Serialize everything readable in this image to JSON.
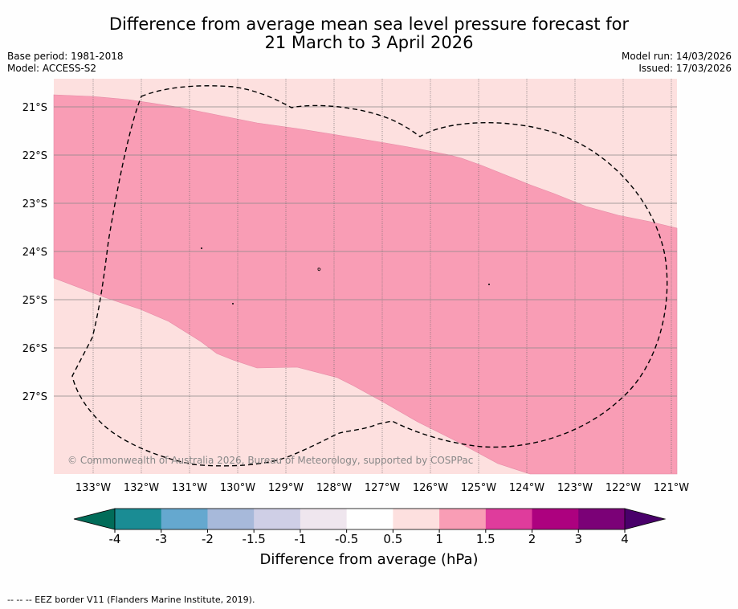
{
  "title_line1": "Difference from average mean sea level pressure forecast for",
  "title_line2": "21 March to 3 April 2026",
  "base_period": "Base period: 1981-2018",
  "model": "Model: ACCESS-S2",
  "model_run": "Model run: 14/03/2026",
  "issued": "Issued: 17/03/2026",
  "copyright": "© Commonwealth of Australia 2026, Bureau of Meteorology, supported by COSPPac",
  "lat_labels": [
    "21°S",
    "22°S",
    "23°S",
    "24°S",
    "25°S",
    "26°S",
    "27°S"
  ],
  "lon_labels": [
    "133°W",
    "132°W",
    "131°W",
    "130°W",
    "129°W",
    "128°W",
    "127°W",
    "126°W",
    "125°W",
    "124°W",
    "123°W",
    "122°W",
    "121°W"
  ],
  "colorbar": {
    "title": "Difference from average (hPa)",
    "ticks": [
      "-4",
      "-3",
      "-2",
      "-1.5",
      "-1",
      "-0.5",
      "0.5",
      "1",
      "1.5",
      "2",
      "3",
      "4"
    ],
    "colors": [
      "#1a8c94",
      "#65a8cf",
      "#a7b9da",
      "#cfcfe6",
      "#efe6ee",
      "#ffffff",
      "#fde0df",
      "#f99db5",
      "#df3c9c",
      "#ad017f",
      "#7b0177"
    ],
    "under_color": "#016c59",
    "over_color": "#49006a"
  },
  "legend_note": "--  --  -- EEZ border V11 (Flanders Marine Institute, 2019)."
}
